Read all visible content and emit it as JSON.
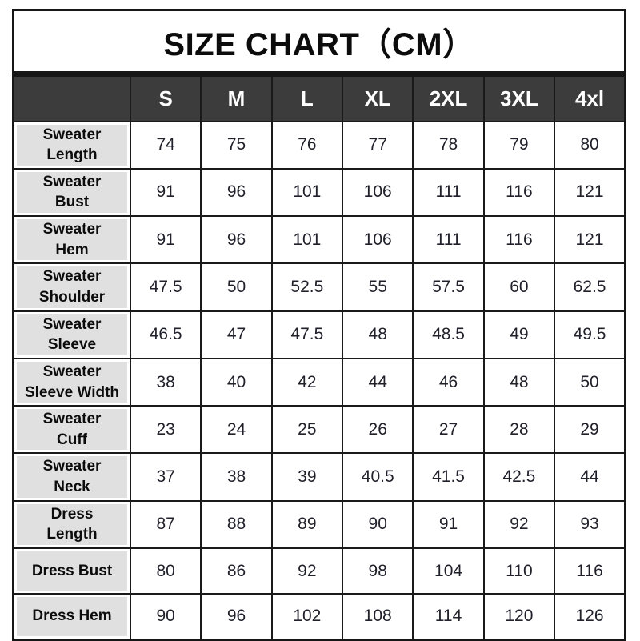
{
  "title": "SIZE CHART（CM）",
  "colors": {
    "header_bg": "#3c3c3c",
    "header_text": "#ffffff",
    "label_bg": "#e0e0e0",
    "grid_border": "#1a1a1a",
    "value_text": "#21212b",
    "page_bg": "#ffffff"
  },
  "table": {
    "unit": "CM",
    "columns": [
      "",
      "S",
      "M",
      "L",
      "XL",
      "2XL",
      "3XL",
      "4xl"
    ],
    "rows": [
      {
        "label": "Sweater\nLength",
        "values": [
          "74",
          "75",
          "76",
          "77",
          "78",
          "79",
          "80"
        ]
      },
      {
        "label": "Sweater\nBust",
        "values": [
          "91",
          "96",
          "101",
          "106",
          "111",
          "116",
          "121"
        ]
      },
      {
        "label": "Sweater\nHem",
        "values": [
          "91",
          "96",
          "101",
          "106",
          "111",
          "116",
          "121"
        ]
      },
      {
        "label": "Sweater\nShoulder",
        "values": [
          "47.5",
          "50",
          "52.5",
          "55",
          "57.5",
          "60",
          "62.5"
        ]
      },
      {
        "label": "Sweater\nSleeve",
        "values": [
          "46.5",
          "47",
          "47.5",
          "48",
          "48.5",
          "49",
          "49.5"
        ]
      },
      {
        "label": "Sweater\nSleeve Width",
        "values": [
          "38",
          "40",
          "42",
          "44",
          "46",
          "48",
          "50"
        ]
      },
      {
        "label": "Sweater\nCuff",
        "values": [
          "23",
          "24",
          "25",
          "26",
          "27",
          "28",
          "29"
        ]
      },
      {
        "label": "Sweater\nNeck",
        "values": [
          "37",
          "38",
          "39",
          "40.5",
          "41.5",
          "42.5",
          "44"
        ]
      },
      {
        "label": "Dress\nLength",
        "values": [
          "87",
          "88",
          "89",
          "90",
          "91",
          "92",
          "93"
        ]
      },
      {
        "label": "Dress Bust",
        "values": [
          "80",
          "86",
          "92",
          "98",
          "104",
          "110",
          "116"
        ]
      },
      {
        "label": "Dress Hem",
        "values": [
          "90",
          "96",
          "102",
          "108",
          "114",
          "120",
          "126"
        ]
      }
    ]
  }
}
